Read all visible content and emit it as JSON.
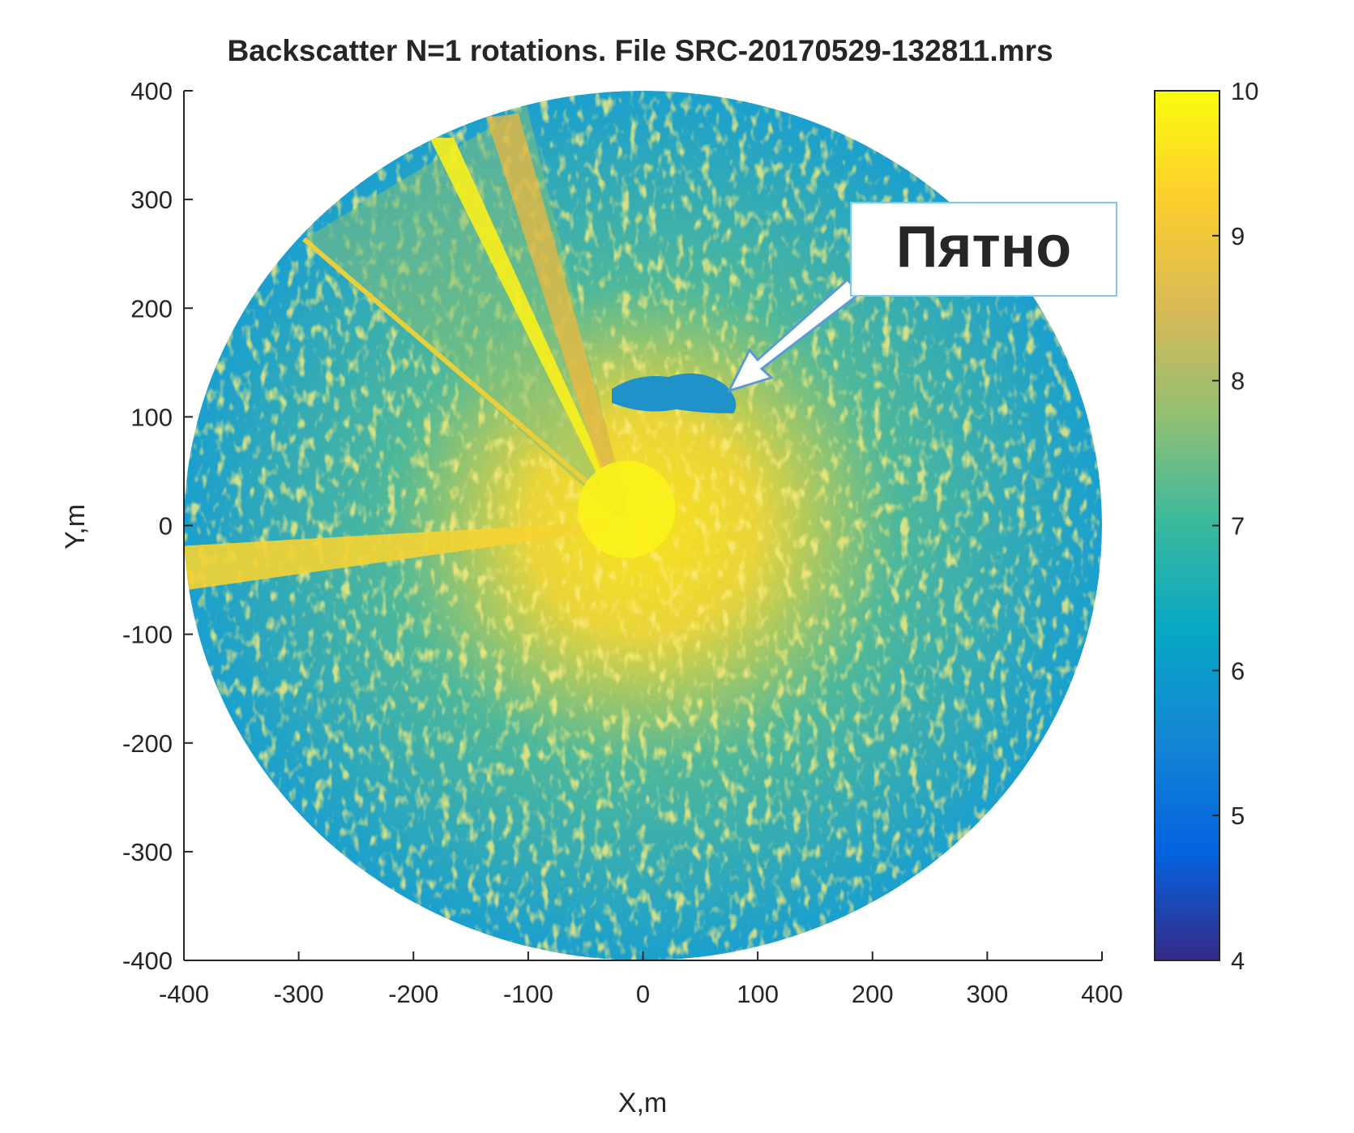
{
  "chart_data": {
    "type": "heatmap",
    "title": "Backscatter N=1 rotations. File SRC-20170529-132811.mrs",
    "x_label": "X,m",
    "y_label": "Y,m",
    "xlim": [
      -400,
      400
    ],
    "ylim": [
      -400,
      400
    ],
    "xticks": [
      -400,
      -300,
      -200,
      -100,
      0,
      100,
      200,
      300,
      400
    ],
    "yticks": [
      -400,
      -300,
      -200,
      -100,
      0,
      100,
      200,
      300,
      400
    ],
    "colorbar": {
      "lim": [
        4,
        10
      ],
      "ticks": [
        4,
        5,
        6,
        7,
        8,
        9,
        10
      ],
      "colors": [
        "#352a87",
        "#0363e1",
        "#1485d4",
        "#06a7c6",
        "#38b99e",
        "#92bf73",
        "#d9ba56",
        "#fcce2e",
        "#f9fb0e"
      ]
    },
    "annotation": {
      "text": "Пятно",
      "color": "#c00000"
    }
  }
}
